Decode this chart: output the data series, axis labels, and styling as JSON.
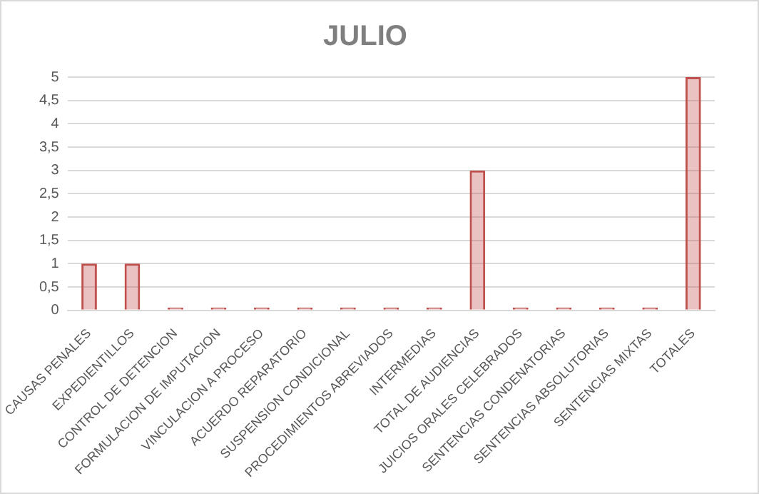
{
  "chart_data": {
    "type": "bar",
    "title": "JULIO",
    "categories": [
      "CAUSAS PENALES",
      "EXPEDIENTILLOS",
      "CONTROL DE DETENCION",
      "FORMULACION DE IMPUTACION",
      "VINCULACION A PROCESO",
      "ACUERDO REPARATORIO",
      "SUSPENSION CONDICIONAL",
      "PROCEDIMIENTOS ABREVIADOS",
      "INTERMEDIAS",
      "TOTAL DE AUDIENCIAS",
      "JUICIOS ORALES CELEBRADOS",
      "SENTENCIAS CONDENATORIAS",
      "SENTENCIAS ABSOLUTORIAS",
      "SENTENCIAS MIXTAS",
      "TOTALES"
    ],
    "values": [
      1,
      1,
      0,
      0,
      0,
      0,
      0,
      0,
      0,
      3,
      0,
      0,
      0,
      0,
      5
    ],
    "color": "#c0504d",
    "ylim": [
      0,
      5
    ],
    "yticks": [
      0,
      {
        "value": 0.5,
        "label": "0,5"
      },
      1,
      {
        "value": 1.5,
        "label": "1,5"
      },
      2,
      {
        "value": 2.5,
        "label": "2,5"
      },
      3,
      {
        "value": 3.5,
        "label": "3,5"
      },
      4,
      {
        "value": 4.5,
        "label": "4,5"
      },
      5
    ],
    "grid": "y"
  }
}
